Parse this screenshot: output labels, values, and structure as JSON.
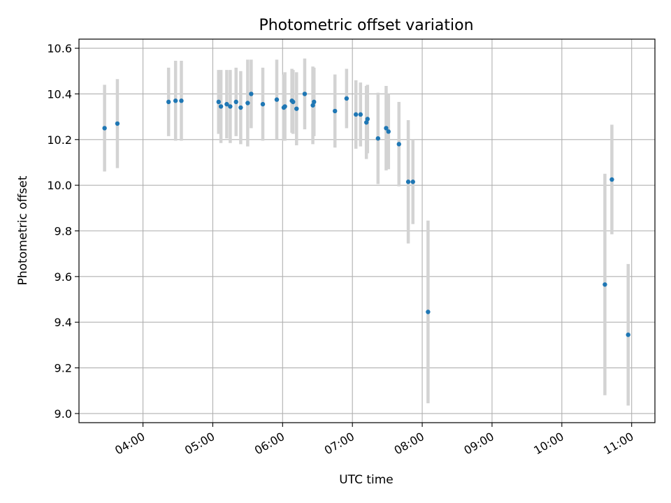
{
  "chart_data": {
    "type": "scatter",
    "title": "Photometric offset variation",
    "xlabel": "UTC time",
    "ylabel": "Photometric offset",
    "xlim": [
      "03:05",
      "11:20"
    ],
    "ylim": [
      8.96,
      10.64
    ],
    "x_ticks": [
      "04:00",
      "05:00",
      "06:00",
      "07:00",
      "08:00",
      "09:00",
      "10:00",
      "11:00"
    ],
    "y_ticks": [
      "9.0",
      "9.2",
      "9.4",
      "9.6",
      "9.8",
      "10.0",
      "10.2",
      "10.4",
      "10.6"
    ],
    "grid": true,
    "series": [
      {
        "point_color": "#1f77b4",
        "errorbar_color": "#d3d3d3",
        "points": [
          {
            "x": "03:27",
            "y": 10.25,
            "err": 0.19
          },
          {
            "x": "03:38",
            "y": 10.27,
            "err": 0.195
          },
          {
            "x": "04:22",
            "y": 10.365,
            "err": 0.15
          },
          {
            "x": "04:28",
            "y": 10.37,
            "err": 0.175
          },
          {
            "x": "04:33",
            "y": 10.37,
            "err": 0.175
          },
          {
            "x": "05:05",
            "y": 10.365,
            "err": 0.14
          },
          {
            "x": "05:07",
            "y": 10.345,
            "err": 0.16
          },
          {
            "x": "05:12",
            "y": 10.355,
            "err": 0.15
          },
          {
            "x": "05:15",
            "y": 10.345,
            "err": 0.16
          },
          {
            "x": "05:20",
            "y": 10.365,
            "err": 0.15
          },
          {
            "x": "05:24",
            "y": 10.34,
            "err": 0.16
          },
          {
            "x": "05:30",
            "y": 10.36,
            "err": 0.19
          },
          {
            "x": "05:33",
            "y": 10.4,
            "err": 0.15
          },
          {
            "x": "05:43",
            "y": 10.355,
            "err": 0.16
          },
          {
            "x": "05:55",
            "y": 10.375,
            "err": 0.175
          },
          {
            "x": "06:01",
            "y": 10.34,
            "err": 0.145
          },
          {
            "x": "06:02",
            "y": 10.345,
            "err": 0.15
          },
          {
            "x": "06:08",
            "y": 10.37,
            "err": 0.14
          },
          {
            "x": "06:09",
            "y": 10.365,
            "err": 0.14
          },
          {
            "x": "06:12",
            "y": 10.335,
            "err": 0.16
          },
          {
            "x": "06:19",
            "y": 10.4,
            "err": 0.155
          },
          {
            "x": "06:26",
            "y": 10.35,
            "err": 0.17
          },
          {
            "x": "06:27",
            "y": 10.365,
            "err": 0.15
          },
          {
            "x": "06:45",
            "y": 10.325,
            "err": 0.16
          },
          {
            "x": "06:55",
            "y": 10.38,
            "err": 0.13
          },
          {
            "x": "07:03",
            "y": 10.31,
            "err": 0.15
          },
          {
            "x": "07:07",
            "y": 10.31,
            "err": 0.14
          },
          {
            "x": "07:12",
            "y": 10.275,
            "err": 0.16
          },
          {
            "x": "07:13",
            "y": 10.29,
            "err": 0.15
          },
          {
            "x": "07:22",
            "y": 10.205,
            "err": 0.2
          },
          {
            "x": "07:29",
            "y": 10.25,
            "err": 0.185
          },
          {
            "x": "07:31",
            "y": 10.235,
            "err": 0.165
          },
          {
            "x": "07:40",
            "y": 10.18,
            "err": 0.185
          },
          {
            "x": "07:48",
            "y": 10.015,
            "err": 0.27
          },
          {
            "x": "07:52",
            "y": 10.015,
            "err": 0.185
          },
          {
            "x": "08:05",
            "y": 9.445,
            "err": 0.4
          },
          {
            "x": "10:37",
            "y": 9.565,
            "err": 0.485
          },
          {
            "x": "10:43",
            "y": 10.025,
            "err": 0.24
          },
          {
            "x": "10:57",
            "y": 9.345,
            "err": 0.31
          }
        ]
      }
    ]
  }
}
